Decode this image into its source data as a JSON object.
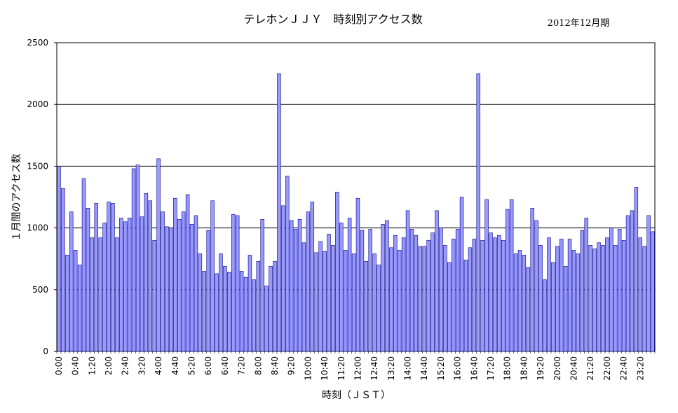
{
  "chart_data": {
    "type": "bar",
    "title": "テレホンＪＪＹ　時刻別アクセス数",
    "period": "2012年12月期",
    "xlabel": "時刻（ＪＳＴ）",
    "ylabel": "１月間のアクセス数",
    "ylim": [
      0,
      2500
    ],
    "y_ticks": [
      0,
      500,
      1000,
      1500,
      2000,
      2500
    ],
    "grid": true,
    "bar_color": "#9999ff",
    "bar_stroke": "#000080",
    "x_tick_labels": [
      "0:00",
      "0:40",
      "1:20",
      "2:00",
      "2:40",
      "3:20",
      "4:00",
      "4:40",
      "5:20",
      "6:00",
      "6:40",
      "7:20",
      "8:00",
      "8:40",
      "9:20",
      "10:00",
      "10:40",
      "11:20",
      "12:00",
      "12:40",
      "13:20",
      "14:00",
      "14:40",
      "15:20",
      "16:00",
      "16:40",
      "17:20",
      "18:00",
      "18:40",
      "19:20",
      "20:00",
      "20:40",
      "21:20",
      "22:00",
      "22:40",
      "23:20"
    ],
    "x_tick_every": 4,
    "bin_minutes": 10,
    "values": [
      1500,
      1320,
      780,
      1130,
      820,
      700,
      1400,
      1160,
      920,
      1200,
      920,
      1040,
      1210,
      1200,
      920,
      1080,
      1050,
      1080,
      1480,
      1510,
      1090,
      1280,
      1220,
      900,
      1560,
      1130,
      1010,
      1000,
      1240,
      1070,
      1130,
      1270,
      1030,
      1100,
      790,
      650,
      980,
      1220,
      630,
      790,
      690,
      640,
      1110,
      1100,
      650,
      600,
      780,
      580,
      730,
      1070,
      530,
      690,
      730,
      2250,
      1180,
      1420,
      1060,
      990,
      1070,
      880,
      1130,
      1210,
      800,
      890,
      810,
      950,
      860,
      1290,
      1040,
      820,
      1080,
      790,
      1240,
      980,
      730,
      990,
      790,
      700,
      1030,
      1060,
      840,
      940,
      820,
      920,
      1140,
      990,
      940,
      850,
      850,
      900,
      960,
      1140,
      1000,
      860,
      720,
      910,
      990,
      1250,
      740,
      840,
      910,
      2250,
      900,
      1230,
      960,
      920,
      940,
      900,
      1150,
      1230,
      790,
      820,
      780,
      680,
      1160,
      1060,
      860,
      580,
      920,
      720,
      850,
      910,
      690,
      910,
      820,
      790,
      980,
      1080,
      860,
      830,
      880,
      860,
      920,
      1000,
      860,
      990,
      900,
      1100,
      1140,
      1330,
      920,
      850,
      1100,
      970
    ]
  }
}
